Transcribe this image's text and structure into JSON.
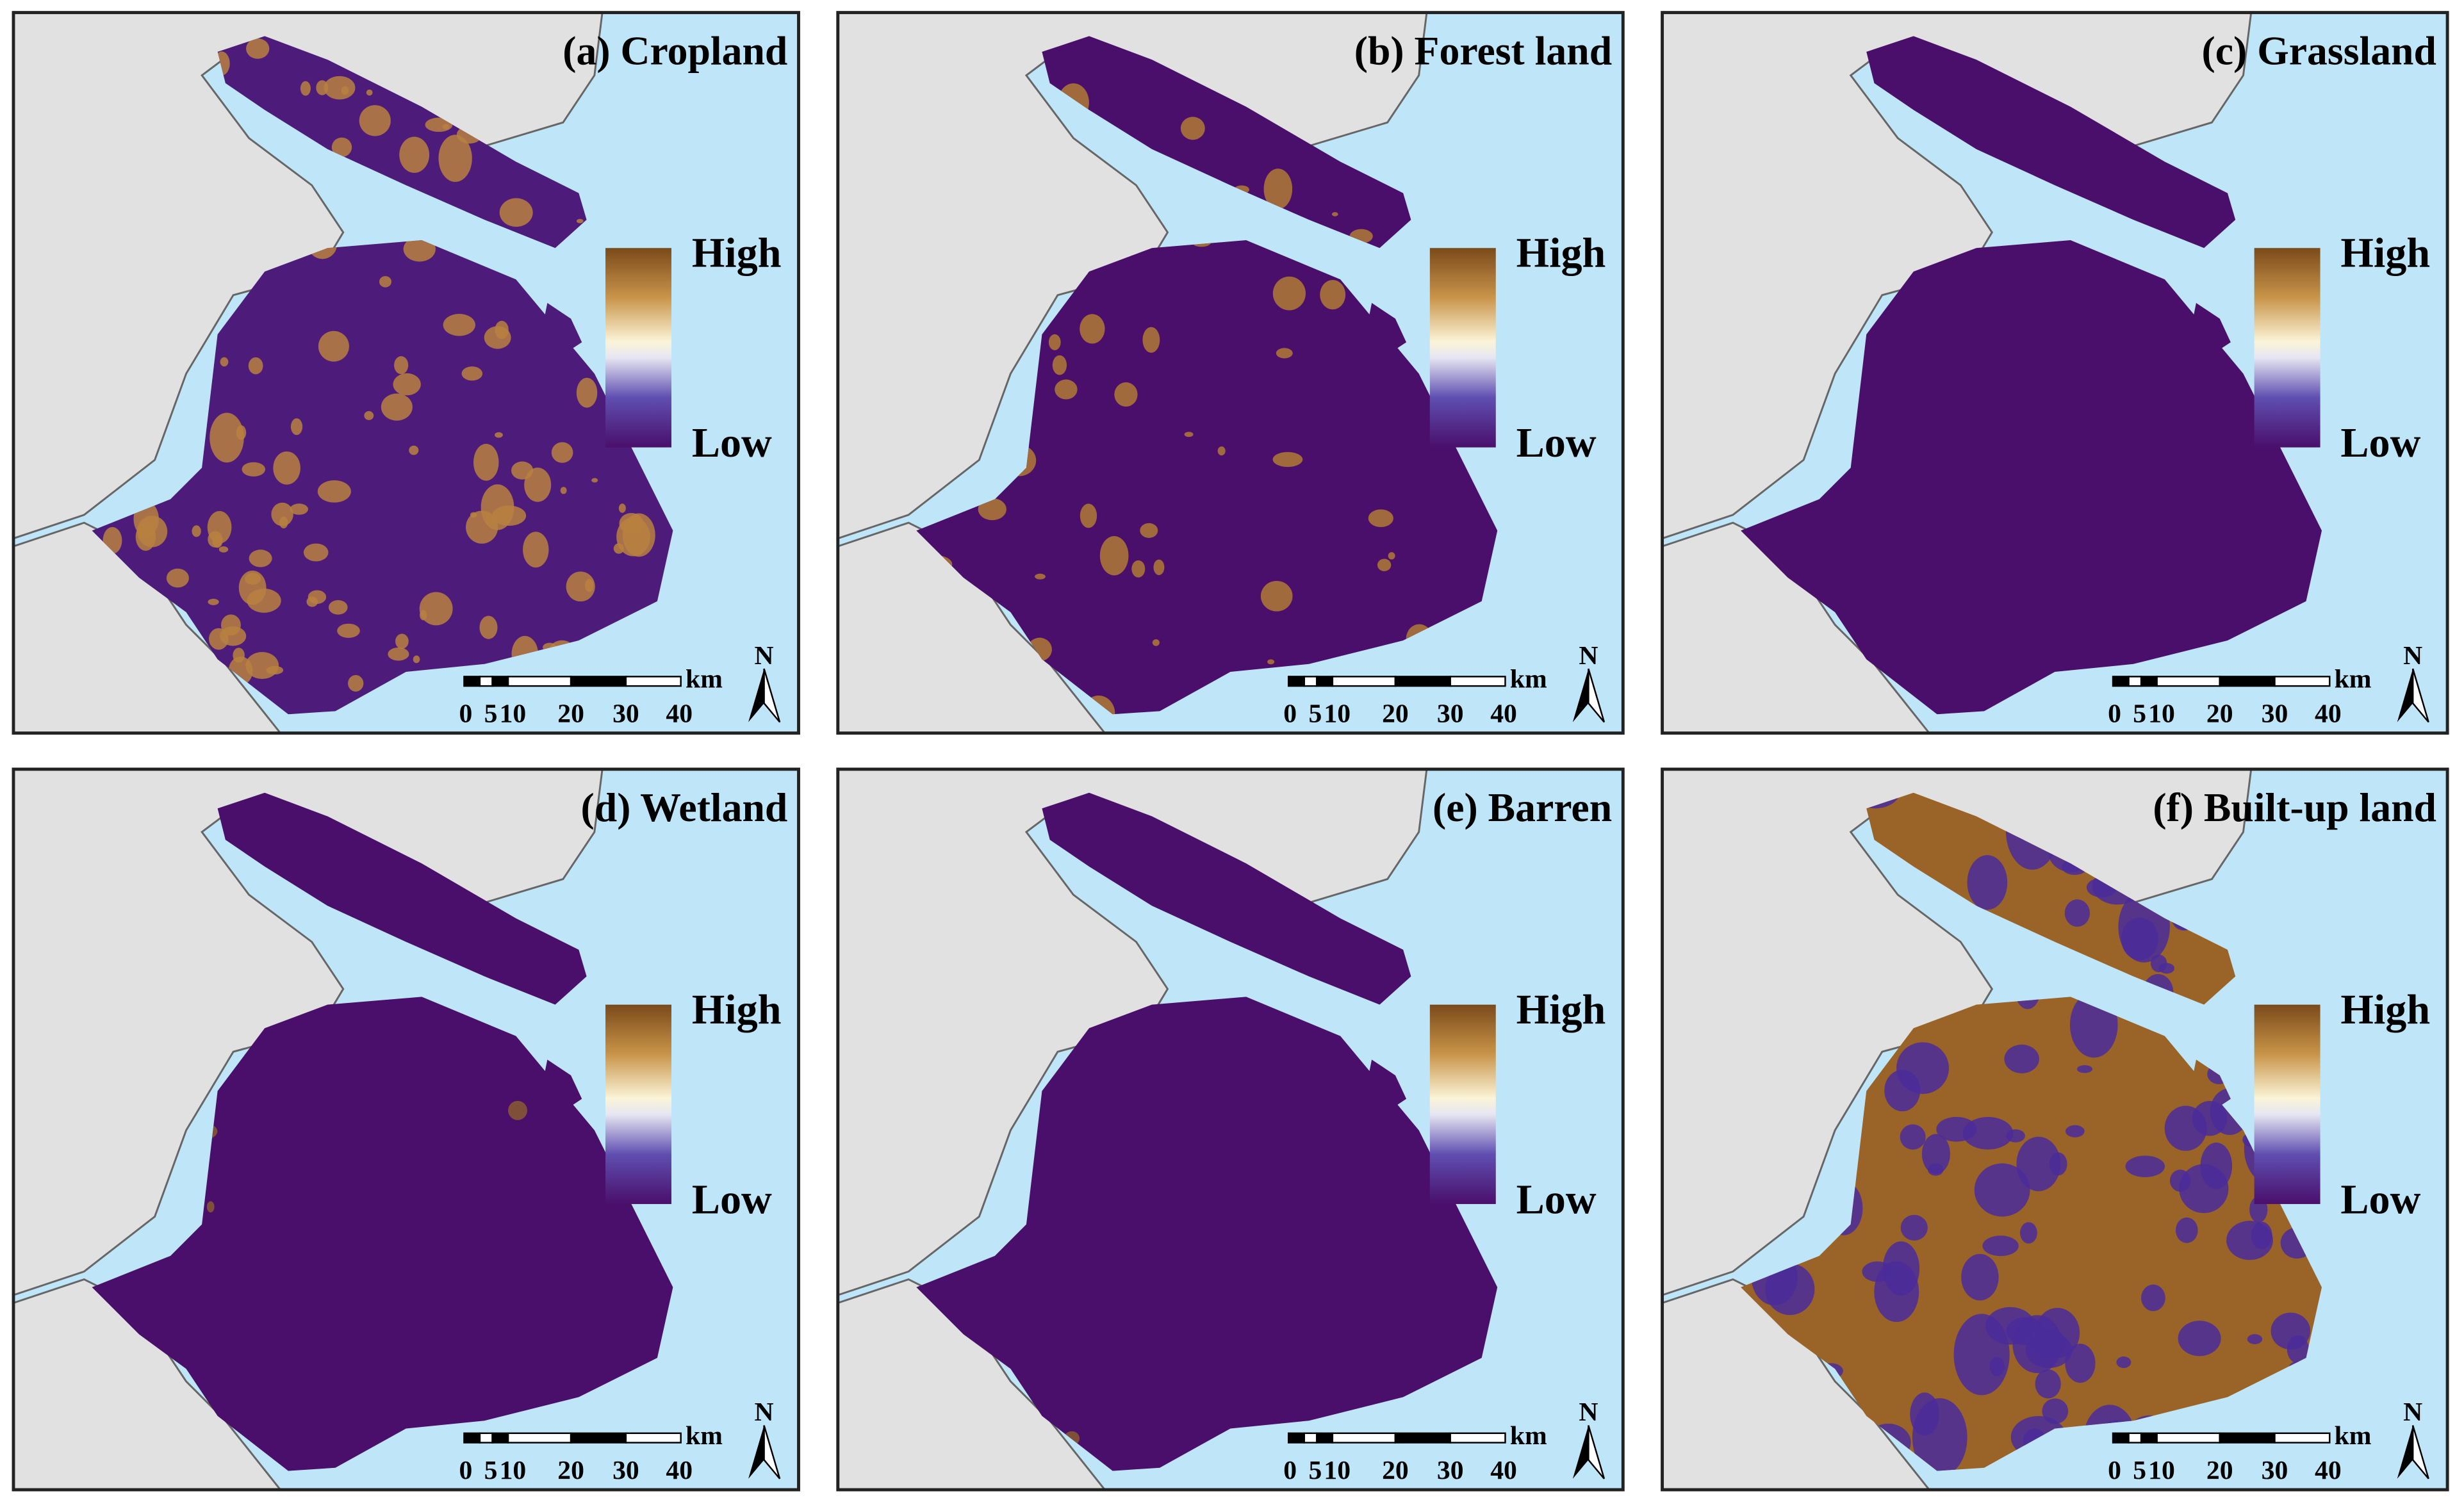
{
  "panels": [
    {
      "title": "(a) Cropland",
      "legend": {
        "high": "High",
        "low": "Low"
      },
      "scale_bar": {
        "labels": [
          "0",
          "5",
          "10",
          "20",
          "30",
          "40"
        ],
        "unit": "km"
      },
      "north": "N"
    },
    {
      "title": "(b) Forest land",
      "legend": {
        "high": "High",
        "low": "Low"
      },
      "scale_bar": {
        "labels": [
          "0",
          "5",
          "10",
          "20",
          "30",
          "40"
        ],
        "unit": "km"
      },
      "north": "N"
    },
    {
      "title": "(c) Grassland",
      "legend": {
        "high": "High",
        "low": "Low"
      },
      "scale_bar": {
        "labels": [
          "0",
          "5",
          "10",
          "20",
          "30",
          "40"
        ],
        "unit": "km"
      },
      "north": "N"
    },
    {
      "title": "(d) Wetland",
      "legend": {
        "high": "High",
        "low": "Low"
      },
      "scale_bar": {
        "labels": [
          "0",
          "5",
          "10",
          "20",
          "30",
          "40"
        ],
        "unit": "km"
      },
      "north": "N"
    },
    {
      "title": "(e) Barren",
      "legend": {
        "high": "High",
        "low": "Low"
      },
      "scale_bar": {
        "labels": [
          "0",
          "5",
          "10",
          "20",
          "30",
          "40"
        ],
        "unit": "km"
      },
      "north": "N"
    },
    {
      "title": "(f) Built-up land",
      "legend": {
        "high": "High",
        "low": "Low"
      },
      "scale_bar": {
        "labels": [
          "0",
          "5",
          "10",
          "20",
          "30",
          "40"
        ],
        "unit": "km"
      },
      "north": "N"
    }
  ]
}
